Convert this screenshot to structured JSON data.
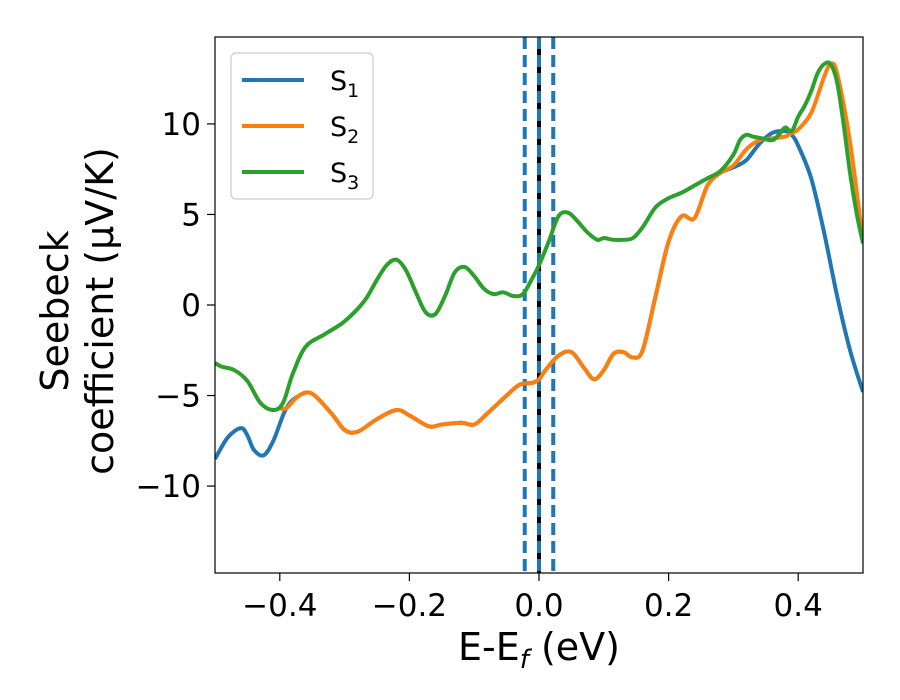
{
  "chart_data": {
    "type": "line",
    "xlabel": "E-E",
    "xlabel_sub": "f",
    "xlabel_unit": " (eV)",
    "ylabel_line1": "Seebeck",
    "ylabel_line2": "coefficient  (μV/K)",
    "xlim": [
      -0.5,
      0.5
    ],
    "ylim": [
      -14.8,
      14.8
    ],
    "xticks": [
      -0.4,
      -0.2,
      0.0,
      0.2,
      0.4
    ],
    "xtick_labels": [
      "−0.4",
      "−0.2",
      "0.0",
      "0.2",
      "0.4"
    ],
    "yticks": [
      -10,
      -5,
      0,
      5,
      10
    ],
    "ytick_labels": [
      "−10",
      "−5",
      "0",
      "5",
      "10"
    ],
    "legend_position": "upper-left",
    "vlines": [
      {
        "x": -0.022,
        "color": "#1f77b4",
        "style": "dashed"
      },
      {
        "x": 0.0,
        "color": "#000000",
        "style": "solid"
      },
      {
        "x": 0.0,
        "color": "#1f77b4",
        "style": "dashed"
      },
      {
        "x": 0.022,
        "color": "#1f77b4",
        "style": "dashed"
      }
    ],
    "series": [
      {
        "name": "S",
        "sub": "1",
        "color": "#1f77b4",
        "x": [
          -0.5,
          -0.48,
          -0.46,
          -0.45,
          -0.44,
          -0.425,
          -0.41,
          -0.39,
          -0.37,
          -0.35,
          -0.32,
          -0.3,
          -0.28,
          -0.25,
          -0.22,
          -0.2,
          -0.17,
          -0.15,
          -0.12,
          -0.1,
          -0.08,
          -0.05,
          -0.03,
          -0.01,
          0.0,
          0.01,
          0.03,
          0.05,
          0.07,
          0.085,
          0.1,
          0.115,
          0.13,
          0.145,
          0.16,
          0.18,
          0.2,
          0.22,
          0.24,
          0.26,
          0.28,
          0.3,
          0.32,
          0.34,
          0.36,
          0.38,
          0.39,
          0.4,
          0.42,
          0.44,
          0.46,
          0.48,
          0.5
        ],
        "y": [
          -8.5,
          -7.3,
          -6.8,
          -7.2,
          -8.0,
          -8.3,
          -7.5,
          -5.7,
          -5.0,
          -4.9,
          -6.0,
          -6.9,
          -7.0,
          -6.3,
          -5.8,
          -6.1,
          -6.7,
          -6.6,
          -6.5,
          -6.6,
          -6.0,
          -5.0,
          -4.4,
          -4.3,
          -4.1,
          -3.6,
          -2.8,
          -2.6,
          -3.5,
          -4.1,
          -3.6,
          -2.7,
          -2.6,
          -2.9,
          -2.5,
          0.5,
          3.5,
          4.9,
          4.8,
          6.6,
          7.3,
          7.6,
          8.0,
          8.9,
          9.5,
          9.6,
          9.4,
          8.8,
          7.0,
          4.0,
          0.5,
          -2.5,
          -4.8
        ]
      },
      {
        "name": "S",
        "sub": "2",
        "color": "#ff7f0e",
        "x": [
          -0.4,
          -0.39,
          -0.37,
          -0.35,
          -0.32,
          -0.3,
          -0.28,
          -0.25,
          -0.22,
          -0.2,
          -0.17,
          -0.15,
          -0.12,
          -0.1,
          -0.08,
          -0.05,
          -0.03,
          -0.01,
          0.0,
          0.01,
          0.03,
          0.05,
          0.07,
          0.085,
          0.1,
          0.115,
          0.13,
          0.145,
          0.16,
          0.18,
          0.2,
          0.22,
          0.24,
          0.26,
          0.28,
          0.3,
          0.32,
          0.34,
          0.36,
          0.38,
          0.39,
          0.4,
          0.42,
          0.44,
          0.45,
          0.46,
          0.48,
          0.5
        ],
        "y": [
          -5.7,
          -5.7,
          -5.0,
          -4.9,
          -6.0,
          -6.9,
          -7.0,
          -6.3,
          -5.8,
          -6.1,
          -6.7,
          -6.6,
          -6.5,
          -6.6,
          -6.0,
          -5.0,
          -4.4,
          -4.3,
          -4.1,
          -3.6,
          -2.8,
          -2.6,
          -3.5,
          -4.1,
          -3.6,
          -2.7,
          -2.6,
          -2.9,
          -2.5,
          0.5,
          3.5,
          4.9,
          4.8,
          6.6,
          7.3,
          7.7,
          8.6,
          9.1,
          9.2,
          9.3,
          9.5,
          9.7,
          10.6,
          12.6,
          13.3,
          12.8,
          9.0,
          3.5
        ]
      },
      {
        "name": "S",
        "sub": "3",
        "color": "#2ca02c",
        "x": [
          -0.5,
          -0.49,
          -0.47,
          -0.45,
          -0.43,
          -0.41,
          -0.395,
          -0.38,
          -0.36,
          -0.33,
          -0.3,
          -0.27,
          -0.25,
          -0.235,
          -0.22,
          -0.205,
          -0.19,
          -0.175,
          -0.16,
          -0.145,
          -0.13,
          -0.115,
          -0.1,
          -0.085,
          -0.07,
          -0.055,
          -0.04,
          -0.025,
          -0.01,
          0.0,
          0.015,
          0.03,
          0.045,
          0.06,
          0.075,
          0.09,
          0.1,
          0.115,
          0.13,
          0.145,
          0.16,
          0.18,
          0.2,
          0.22,
          0.24,
          0.26,
          0.28,
          0.3,
          0.31,
          0.32,
          0.33,
          0.345,
          0.36,
          0.37,
          0.38,
          0.39,
          0.4,
          0.41,
          0.42,
          0.43,
          0.44,
          0.45,
          0.46,
          0.47,
          0.48,
          0.49,
          0.5
        ],
        "y": [
          -3.2,
          -3.4,
          -3.6,
          -4.2,
          -5.4,
          -5.8,
          -5.4,
          -3.8,
          -2.3,
          -1.6,
          -0.9,
          0.2,
          1.4,
          2.2,
          2.5,
          1.9,
          0.7,
          -0.4,
          -0.5,
          0.5,
          1.8,
          2.1,
          1.6,
          0.9,
          0.6,
          0.7,
          0.5,
          0.6,
          1.5,
          2.2,
          3.5,
          4.9,
          5.1,
          4.6,
          4.0,
          3.6,
          3.7,
          3.6,
          3.6,
          3.7,
          4.3,
          5.4,
          5.9,
          6.2,
          6.6,
          7.0,
          7.4,
          8.3,
          9.1,
          9.4,
          9.3,
          9.2,
          9.1,
          9.4,
          9.8,
          9.6,
          10.4,
          11.0,
          11.8,
          12.8,
          13.3,
          13.3,
          12.3,
          10.0,
          7.3,
          5.1,
          3.4
        ]
      }
    ]
  }
}
